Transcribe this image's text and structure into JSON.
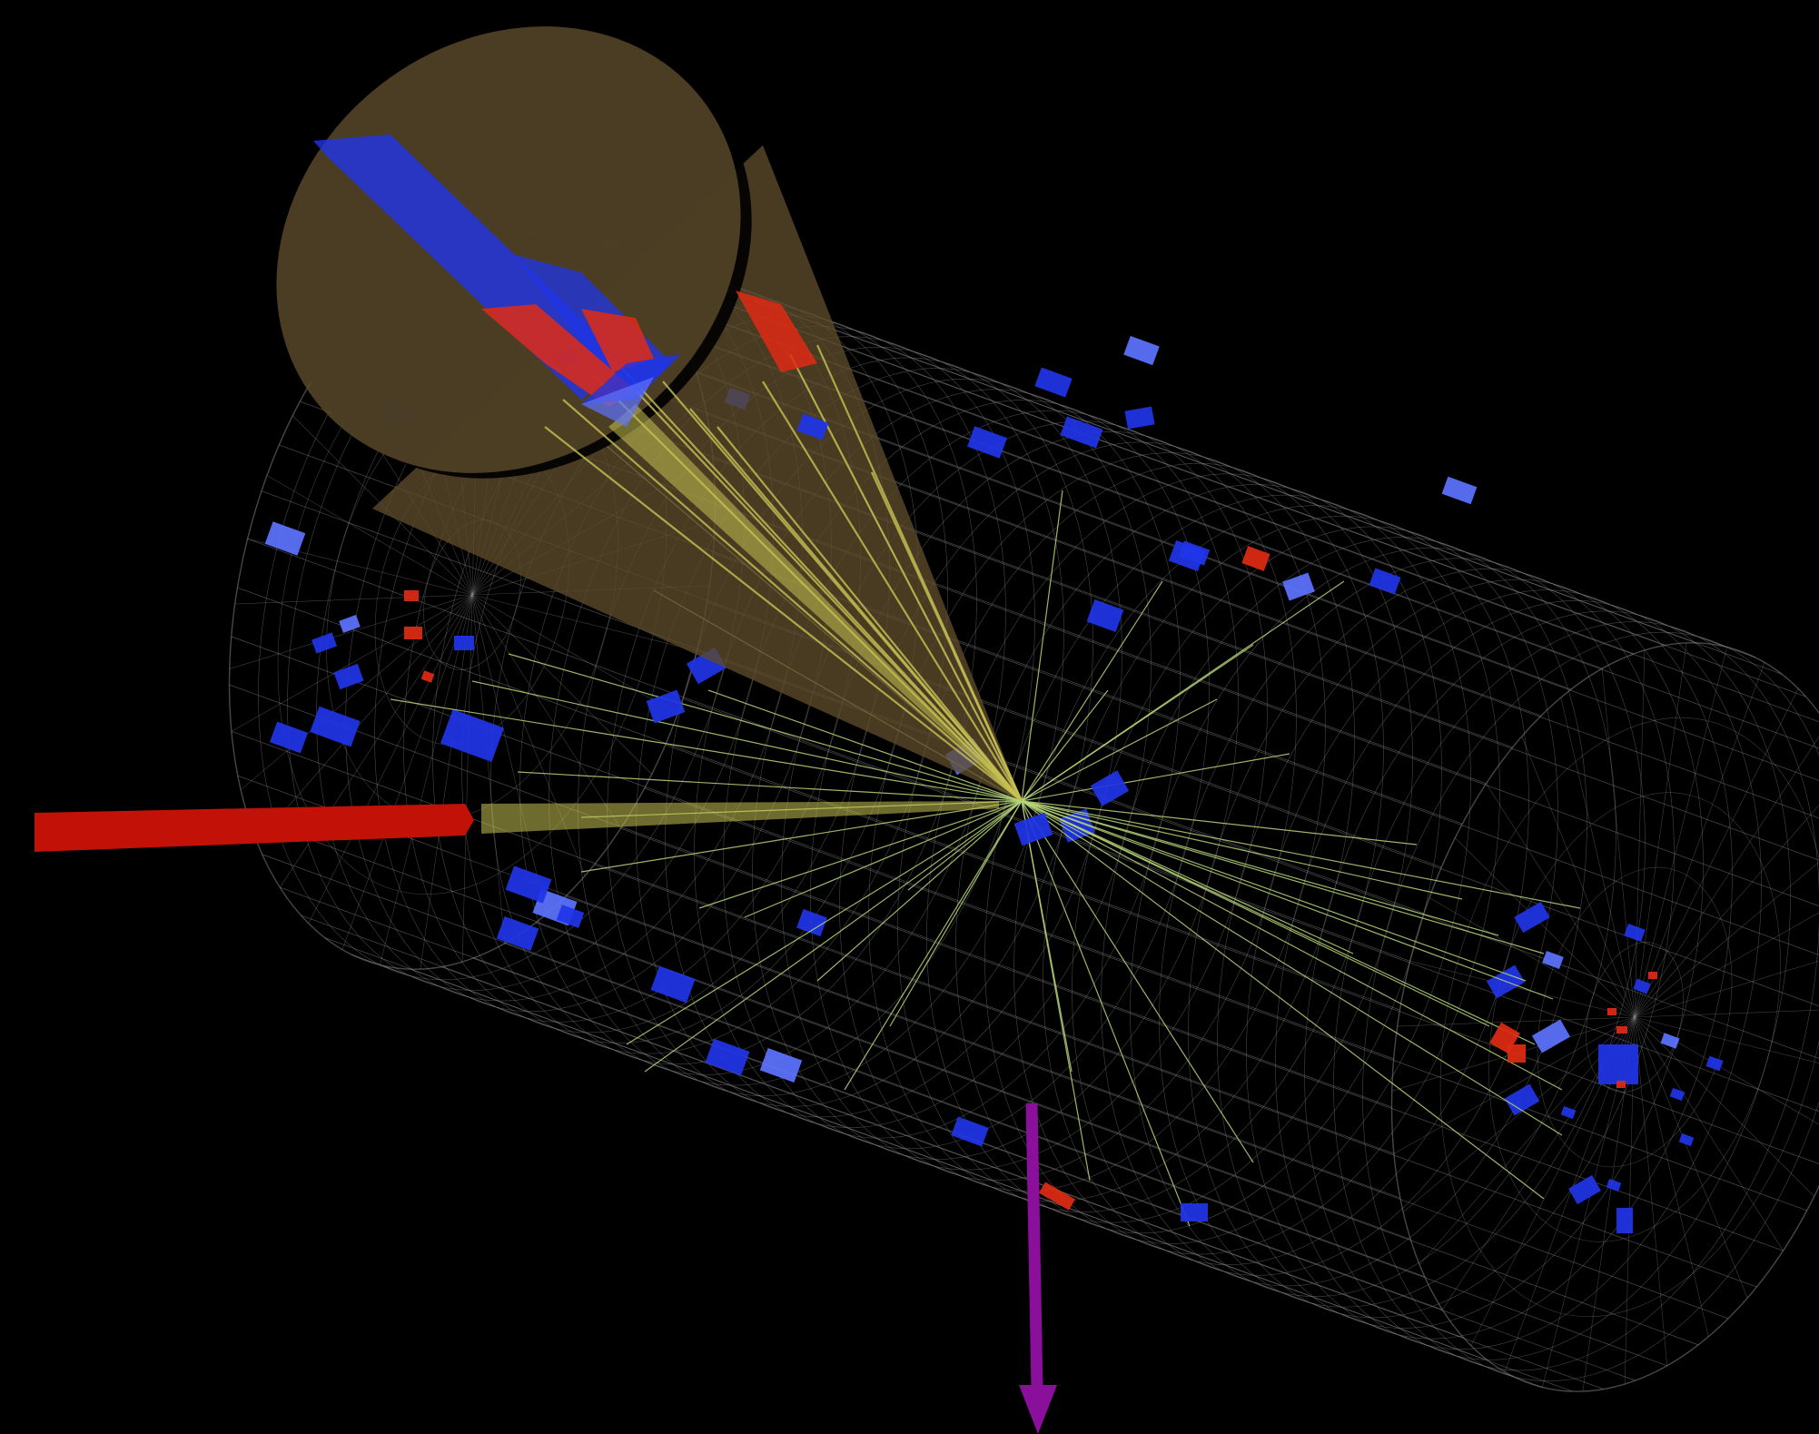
{
  "colors": {
    "background": "#000000",
    "detector_wire": "#8c8c8c",
    "endcap_wire": "#9a9a9a",
    "em_deposit": "#1f35e8",
    "em_deposit_light": "#5c74ff",
    "hadronic_deposit": "#e02a14",
    "track": "#b8d67a",
    "jet_cone": "#5c4c2c",
    "jet_core": "#c8c254",
    "beam_arrow": "#c21208",
    "missing_et_arrow": "#8a0f9a"
  },
  "icons": {
    "jet_cone": "cone",
    "beam_arrow": "arrow-left",
    "missing_et_arrow": "arrow-down"
  }
}
